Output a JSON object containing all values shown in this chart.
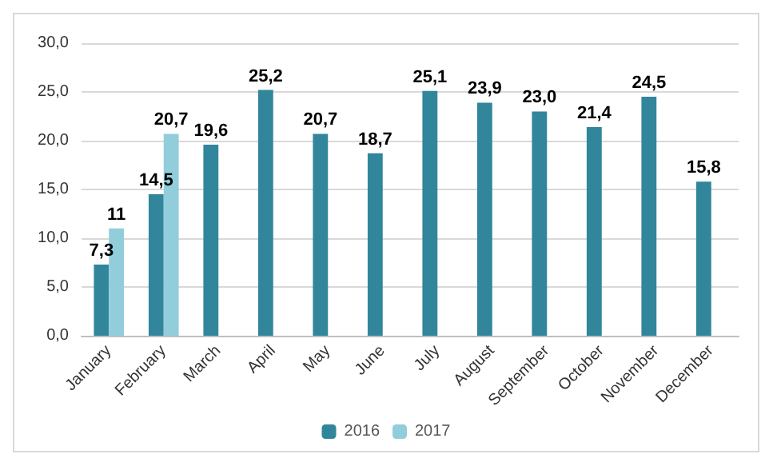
{
  "chart_data": {
    "type": "bar",
    "categories": [
      "January",
      "February",
      "March",
      "April",
      "May",
      "June",
      "July",
      "August",
      "September",
      "October",
      "November",
      "December"
    ],
    "series": [
      {
        "name": "2016",
        "color": "#31869b",
        "values": [
          7.3,
          14.5,
          19.6,
          25.2,
          20.7,
          18.7,
          25.1,
          23.9,
          23.0,
          21.4,
          24.5,
          15.8
        ],
        "value_labels": [
          "7,3",
          "14,5",
          "19,6",
          "25,2",
          "20,7",
          "18,7",
          "25,1",
          "23,9",
          "23,0",
          "21,4",
          "24,5",
          "15,8"
        ]
      },
      {
        "name": "2017",
        "color": "#92cddc",
        "values": [
          11,
          20.7,
          null,
          null,
          null,
          null,
          null,
          null,
          null,
          null,
          null,
          null
        ],
        "value_labels": [
          "11",
          "20,7",
          null,
          null,
          null,
          null,
          null,
          null,
          null,
          null,
          null,
          null
        ]
      }
    ],
    "ylim": [
      0,
      30
    ],
    "yticks": [
      {
        "value": 0,
        "label": "0,0"
      },
      {
        "value": 5,
        "label": "5,0"
      },
      {
        "value": 10,
        "label": "10,0"
      },
      {
        "value": 15,
        "label": "15,0"
      },
      {
        "value": 20,
        "label": "20,0"
      },
      {
        "value": 25,
        "label": "25,0"
      },
      {
        "value": 30,
        "label": "30,0"
      }
    ],
    "grid": "y",
    "legend": "bottom"
  }
}
